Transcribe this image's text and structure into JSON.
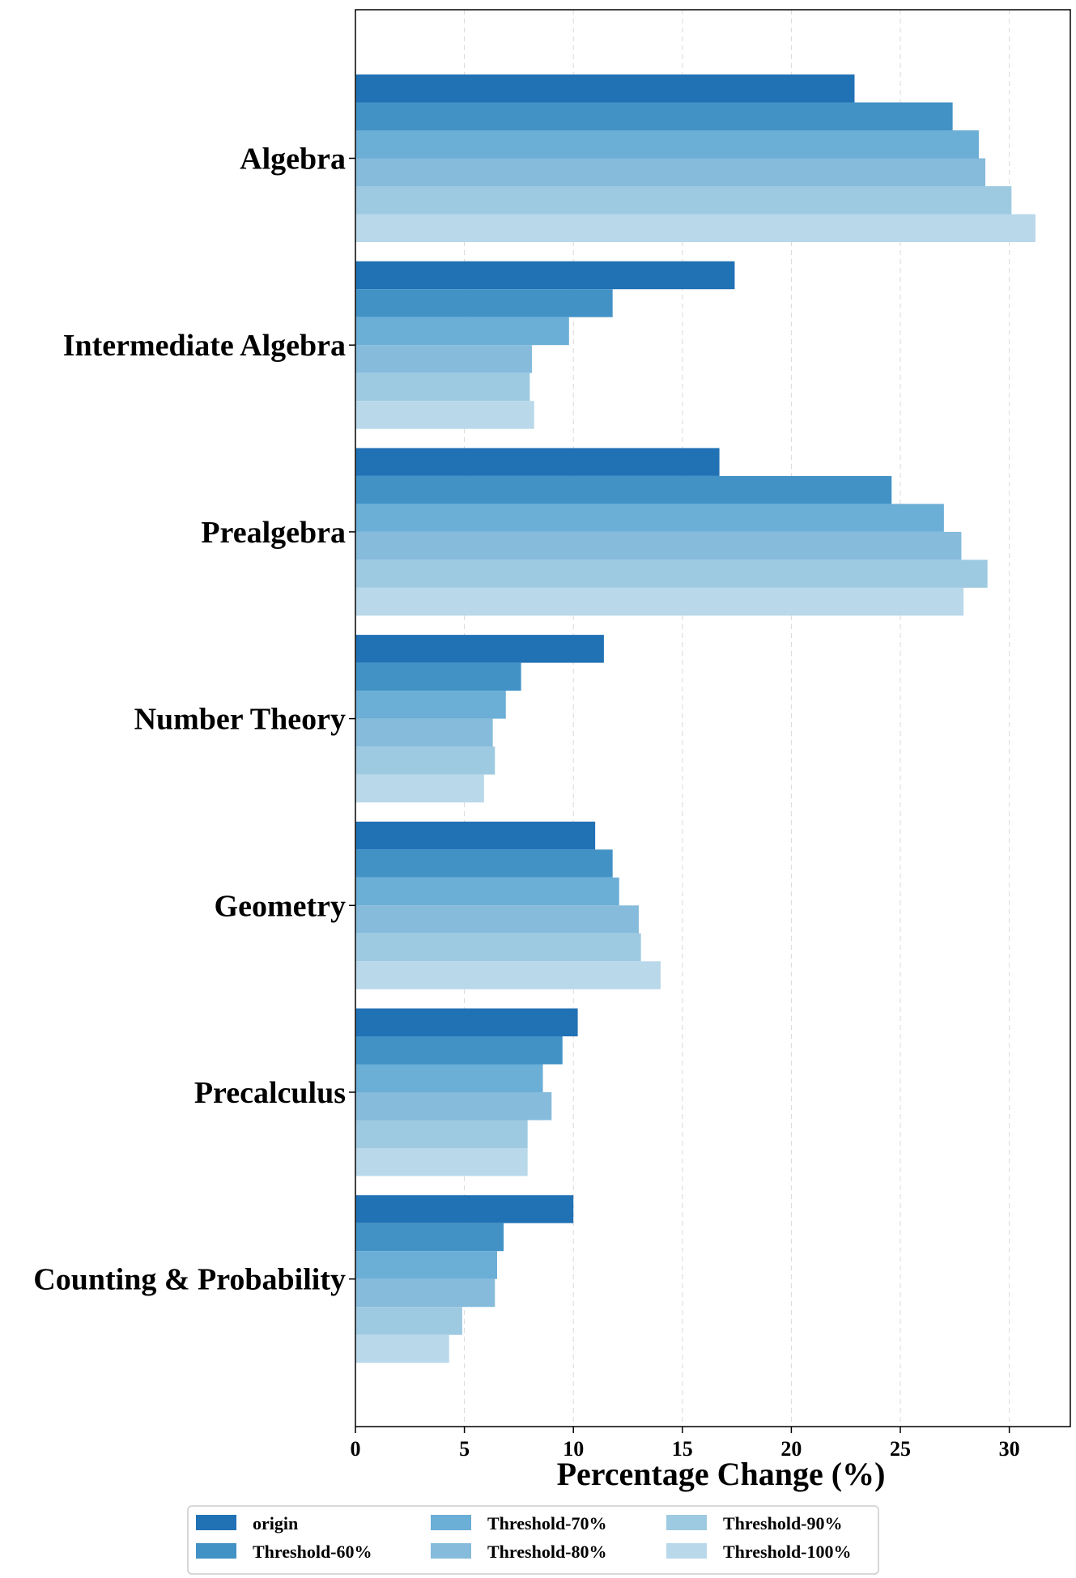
{
  "chart_data": {
    "type": "bar",
    "orientation": "horizontal",
    "title": "",
    "xlabel": "Percentage Change (%)",
    "ylabel": "",
    "xlim": [
      0,
      32.8
    ],
    "xticks": [
      0,
      5,
      10,
      15,
      20,
      25,
      30
    ],
    "grid": "vertical dashed",
    "legend_position": "bottom-center",
    "categories": [
      "Algebra",
      "Intermediate Algebra",
      "Prealgebra",
      "Number Theory",
      "Geometry",
      "Precalculus",
      "Counting & Probability"
    ],
    "series": [
      {
        "name": "origin",
        "color": "#2171b5",
        "values": [
          22.9,
          17.4,
          16.7,
          11.4,
          11.0,
          10.2,
          10.0
        ]
      },
      {
        "name": "Threshold-60%",
        "color": "#4292c6",
        "values": [
          27.4,
          11.8,
          24.6,
          7.6,
          11.8,
          9.5,
          6.8
        ]
      },
      {
        "name": "Threshold-70%",
        "color": "#6baed6",
        "values": [
          28.6,
          9.8,
          27.0,
          6.9,
          12.1,
          8.6,
          6.5
        ]
      },
      {
        "name": "Threshold-80%",
        "color": "#86bbdc",
        "values": [
          28.9,
          8.1,
          27.8,
          6.3,
          13.0,
          9.0,
          6.4
        ]
      },
      {
        "name": "Threshold-90%",
        "color": "#9ecae1",
        "values": [
          30.1,
          8.0,
          29.0,
          6.4,
          13.1,
          7.9,
          4.9
        ]
      },
      {
        "name": "Threshold-100%",
        "color": "#b9d8ea",
        "values": [
          31.2,
          8.2,
          27.9,
          5.9,
          14.0,
          7.9,
          4.3
        ]
      }
    ]
  }
}
